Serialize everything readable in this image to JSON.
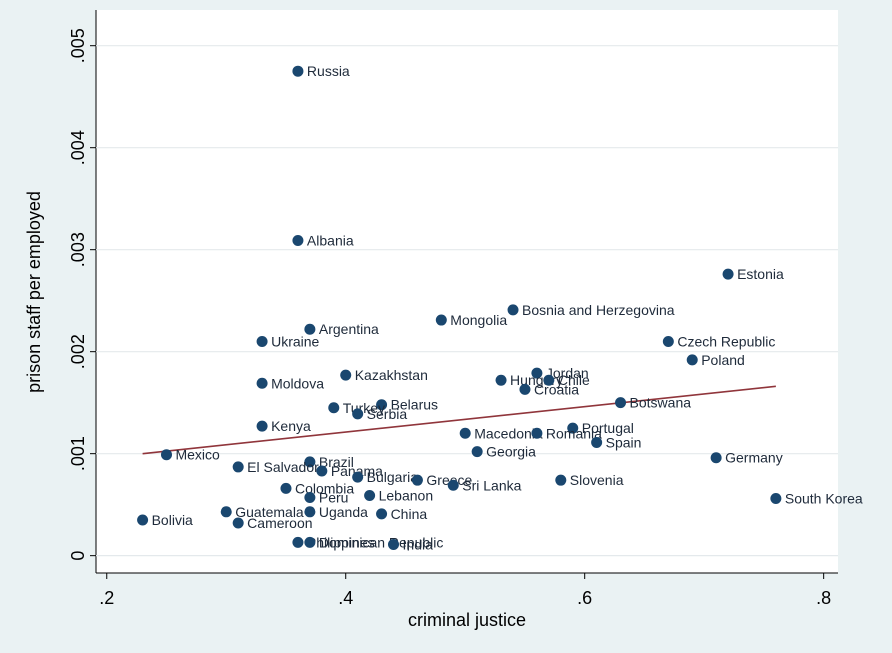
{
  "chart_data": {
    "type": "scatter",
    "x_label": "criminal justice",
    "y_label": "prison staff per employed",
    "point_labels": [
      "Russia",
      "Albania",
      "Estonia",
      "Bosnia and Herzegovina",
      "Mongolia",
      "Argentina",
      "Ukraine",
      "Czech Republic",
      "Poland",
      "Jordan",
      "Kazakhstan",
      "Hungary",
      "Chile",
      "Moldova",
      "Croatia",
      "Botswana",
      "Belarus",
      "Turkey",
      "Serbia",
      "Kenya",
      "Portugal",
      "Macedonia",
      "Romania",
      "Spain",
      "Georgia",
      "Mexico",
      "Germany",
      "Brazil",
      "El Salvador",
      "Panama",
      "Bulgaria",
      "Greece",
      "Slovenia",
      "Sri Lanka",
      "Colombia",
      "Lebanon",
      "Peru",
      "South Korea",
      "Guatemala",
      "Uganda",
      "China",
      "Bolivia",
      "Cameroon",
      "Philippines",
      "Dominican Republic",
      "India"
    ],
    "x": [
      0.36,
      0.36,
      0.72,
      0.54,
      0.48,
      0.37,
      0.33,
      0.67,
      0.69,
      0.56,
      0.4,
      0.53,
      0.57,
      0.33,
      0.55,
      0.63,
      0.43,
      0.39,
      0.41,
      0.33,
      0.59,
      0.5,
      0.56,
      0.61,
      0.51,
      0.25,
      0.71,
      0.37,
      0.31,
      0.38,
      0.41,
      0.46,
      0.58,
      0.49,
      0.35,
      0.42,
      0.37,
      0.76,
      0.3,
      0.37,
      0.43,
      0.23,
      0.31,
      0.36,
      0.37,
      0.44
    ],
    "values": [
      0.00475,
      0.00309,
      0.00276,
      0.00241,
      0.00231,
      0.00222,
      0.0021,
      0.0021,
      0.00192,
      0.00179,
      0.00177,
      0.00172,
      0.00172,
      0.00169,
      0.00163,
      0.0015,
      0.00148,
      0.00145,
      0.00139,
      0.00127,
      0.00125,
      0.0012,
      0.0012,
      0.00111,
      0.00102,
      0.00099,
      0.00096,
      0.00092,
      0.00087,
      0.00083,
      0.00077,
      0.00074,
      0.00074,
      0.00069,
      0.00066,
      0.00059,
      0.00057,
      0.00056,
      0.00043,
      0.00043,
      0.00041,
      0.00035,
      0.00032,
      0.00013,
      0.00013,
      0.00011
    ],
    "color": "#1a476f",
    "fit": {
      "x": [
        0.23,
        0.76
      ],
      "values": [
        0.001,
        0.00166
      ],
      "color": "#90353b"
    },
    "xlim": [
      0.191,
      0.812
    ],
    "ylim": [
      -0.00017,
      0.00535
    ],
    "xticks": [
      {
        "value": 0.2,
        "label": ".2"
      },
      {
        "value": 0.4,
        "label": ".4"
      },
      {
        "value": 0.6,
        "label": ".6"
      },
      {
        "value": 0.8,
        "label": ".8"
      }
    ],
    "yticks": [
      0,
      {
        "value": 0.001,
        "label": ".001"
      },
      {
        "value": 0.002,
        "label": ".002"
      },
      {
        "value": 0.003,
        "label": ".003"
      },
      {
        "value": 0.004,
        "label": ".004"
      },
      {
        "value": 0.005,
        "label": ".005"
      }
    ],
    "grid": true
  }
}
